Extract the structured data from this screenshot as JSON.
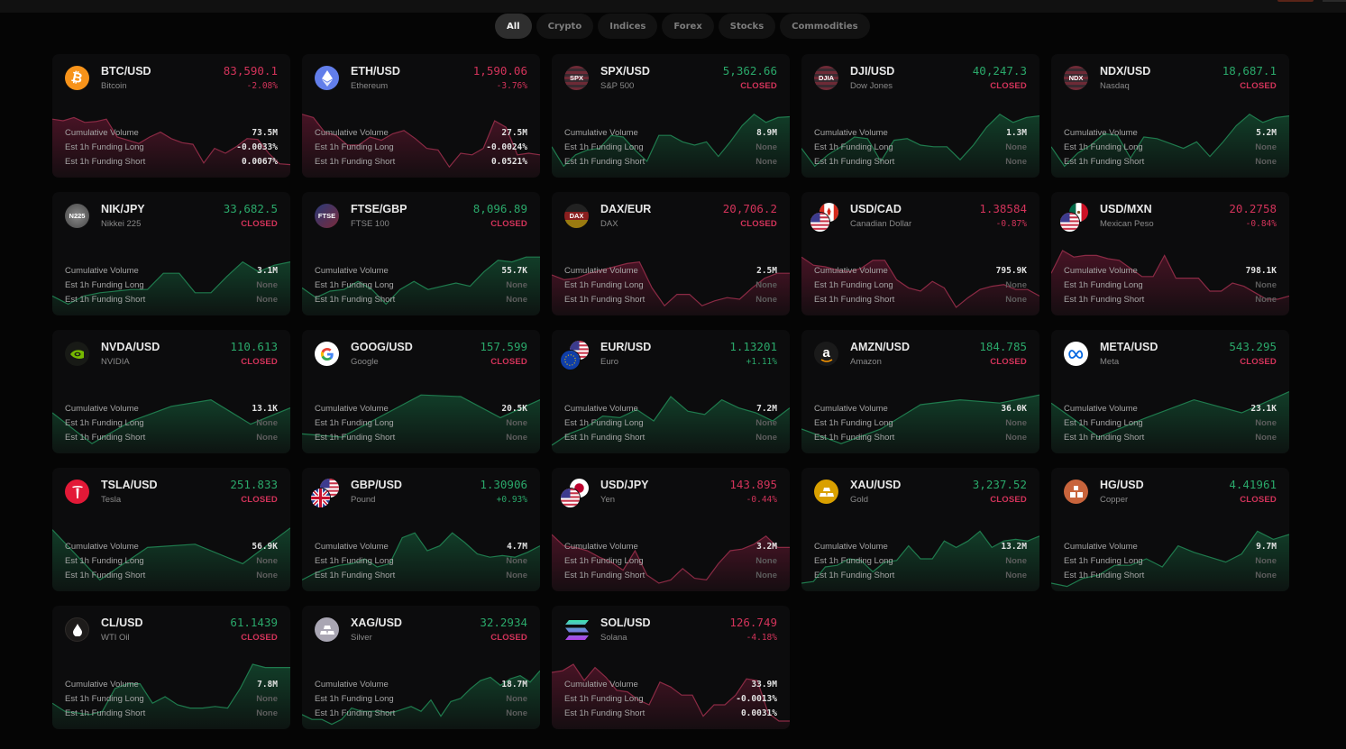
{
  "colors": {
    "up": "#2aa86a",
    "down": "#d2335a",
    "card_bg": "#0c0c0d",
    "page_bg": "#050505"
  },
  "filters": {
    "active": "All",
    "items": [
      {
        "label": "All"
      },
      {
        "label": "Crypto"
      },
      {
        "label": "Indices"
      },
      {
        "label": "Forex"
      },
      {
        "label": "Stocks"
      },
      {
        "label": "Commodities"
      }
    ]
  },
  "labels": {
    "cumulative_volume": "Cumulative Volume",
    "funding_long": "Est 1h Funding Long",
    "funding_short": "Est 1h Funding Short"
  },
  "markets": [
    {
      "symbol": "BTC/USD",
      "name": "Bitcoin",
      "price": "83,590.1",
      "change": "-2.08%",
      "price_dir": "down",
      "change_dir": "down",
      "change_closed": false,
      "volume": "73.5M",
      "funding_long": "-0.0033%",
      "funding_short": "0.0067%",
      "icon": "bitcoin-icon",
      "trend": "down",
      "spark": [
        72,
        70,
        74,
        68,
        69,
        72,
        50,
        46,
        42,
        50,
        56,
        48,
        43,
        41,
        18,
        36,
        30,
        38,
        48,
        47,
        30,
        17,
        16
      ]
    },
    {
      "symbol": "ETH/USD",
      "name": "Ethereum",
      "price": "1,590.06",
      "change": "-3.76%",
      "price_dir": "down",
      "change_dir": "down",
      "change_closed": false,
      "volume": "27.5M",
      "funding_long": "-0.0024%",
      "funding_short": "0.0521%",
      "icon": "ethereum-icon",
      "trend": "down",
      "spark": [
        78,
        74,
        56,
        52,
        40,
        40,
        50,
        46,
        54,
        58,
        48,
        36,
        34,
        13,
        30,
        28,
        36,
        70,
        62,
        28,
        30,
        28
      ]
    },
    {
      "symbol": "SPX/USD",
      "name": "S&P 500",
      "price": "5,362.66",
      "change": "CLOSED",
      "price_dir": "up",
      "change_dir": "down",
      "change_closed": true,
      "volume": "8.9M",
      "funding_long": "None",
      "funding_short": "None",
      "icon": "spx-flag-icon",
      "trend": "up",
      "spark": [
        38,
        14,
        28,
        34,
        36,
        52,
        50,
        34,
        20,
        52,
        52,
        44,
        40,
        44,
        26,
        44,
        64,
        78,
        68,
        74,
        75
      ]
    },
    {
      "symbol": "DJI/USD",
      "name": "Dow Jones",
      "price": "40,247.3",
      "change": "CLOSED",
      "price_dir": "up",
      "change_dir": "down",
      "change_closed": true,
      "volume": "1.3M",
      "funding_long": "None",
      "funding_short": "None",
      "icon": "djia-flag-icon",
      "trend": "up",
      "spark": [
        36,
        14,
        28,
        38,
        50,
        48,
        20,
        46,
        48,
        40,
        38,
        38,
        22,
        40,
        62,
        78,
        68,
        74,
        76
      ]
    },
    {
      "symbol": "NDX/USD",
      "name": "Nasdaq",
      "price": "18,687.1",
      "change": "CLOSED",
      "price_dir": "up",
      "change_dir": "down",
      "change_closed": true,
      "volume": "5.2M",
      "funding_long": "None",
      "funding_short": "None",
      "icon": "ndx-flag-icon",
      "trend": "up",
      "spark": [
        38,
        14,
        30,
        40,
        54,
        52,
        24,
        50,
        48,
        42,
        36,
        44,
        26,
        44,
        64,
        78,
        68,
        74,
        76
      ]
    },
    {
      "symbol": "NIK/JPY",
      "name": "Nikkei 225",
      "price": "33,682.5",
      "change": "CLOSED",
      "price_dir": "up",
      "change_dir": "down",
      "change_closed": true,
      "volume": "3.1M",
      "funding_long": "None",
      "funding_short": "None",
      "icon": "nikkei-flag-icon",
      "trend": "up",
      "spark": [
        24,
        14,
        24,
        28,
        30,
        32,
        32,
        52,
        52,
        28,
        28,
        48,
        66,
        54,
        62,
        66
      ]
    },
    {
      "symbol": "FTSE/GBP",
      "name": "FTSE 100",
      "price": "8,096.89",
      "change": "CLOSED",
      "price_dir": "up",
      "change_dir": "down",
      "change_closed": true,
      "volume": "55.7K",
      "funding_long": "None",
      "funding_short": "None",
      "icon": "ftse-flag-icon",
      "trend": "up",
      "spark": [
        34,
        22,
        30,
        32,
        42,
        32,
        14,
        32,
        42,
        32,
        36,
        40,
        36,
        54,
        68,
        66,
        72,
        72
      ]
    },
    {
      "symbol": "DAX/EUR",
      "name": "DAX",
      "price": "20,706.2",
      "change": "CLOSED",
      "price_dir": "down",
      "change_dir": "down",
      "change_closed": true,
      "volume": "2.5M",
      "funding_long": "None",
      "funding_short": "None",
      "icon": "dax-flag-icon",
      "trend": "down",
      "spark": [
        50,
        44,
        46,
        52,
        56,
        60,
        64,
        66,
        34,
        12,
        26,
        26,
        12,
        18,
        22,
        20,
        34,
        46,
        52,
        52
      ]
    },
    {
      "symbol": "USD/CAD",
      "name": "Canadian Dollar",
      "price": "1.38584",
      "change": "-0.87%",
      "price_dir": "down",
      "change_dir": "down",
      "change_closed": false,
      "volume": "795.9K",
      "funding_long": "None",
      "funding_short": "None",
      "icon": "usd-cad-flags-icon",
      "trend": "down",
      "spark": [
        72,
        62,
        60,
        56,
        54,
        58,
        68,
        68,
        44,
        34,
        30,
        42,
        34,
        10,
        22,
        32,
        36,
        38,
        32,
        32,
        24
      ]
    },
    {
      "symbol": "USD/MXN",
      "name": "Mexican Peso",
      "price": "20.2758",
      "change": "-0.84%",
      "price_dir": "down",
      "change_dir": "down",
      "change_closed": false,
      "volume": "798.1K",
      "funding_long": "None",
      "funding_short": "None",
      "icon": "usd-mxn-flags-icon",
      "trend": "down",
      "spark": [
        52,
        80,
        72,
        74,
        74,
        70,
        68,
        58,
        48,
        48,
        74,
        46,
        46,
        46,
        30,
        30,
        40,
        36,
        28,
        20,
        20,
        24
      ]
    },
    {
      "symbol": "NVDA/USD",
      "name": "NVIDIA",
      "price": "110.613",
      "change": "CLOSED",
      "price_dir": "up",
      "change_dir": "down",
      "change_closed": true,
      "volume": "13.1K",
      "funding_long": "None",
      "funding_short": "None",
      "icon": "nvidia-icon",
      "trend": "up",
      "spark": [
        50,
        12,
        40,
        58,
        66,
        36,
        56
      ]
    },
    {
      "symbol": "GOOG/USD",
      "name": "Google",
      "price": "157.599",
      "change": "CLOSED",
      "price_dir": "up",
      "change_dir": "down",
      "change_closed": true,
      "volume": "20.5K",
      "funding_long": "None",
      "funding_short": "None",
      "icon": "google-icon",
      "trend": "up",
      "spark": [
        24,
        20,
        46,
        72,
        70,
        44,
        66
      ]
    },
    {
      "symbol": "EUR/USD",
      "name": "Euro",
      "price": "1.13201",
      "change": "+1.11%",
      "price_dir": "up",
      "change_dir": "up",
      "change_closed": false,
      "volume": "7.2M",
      "funding_long": "None",
      "funding_short": "None",
      "icon": "eur-usd-flags-icon",
      "trend": "up",
      "spark": [
        10,
        24,
        32,
        46,
        44,
        54,
        40,
        70,
        52,
        48,
        66,
        56,
        50,
        40,
        56
      ]
    },
    {
      "symbol": "AMZN/USD",
      "name": "Amazon",
      "price": "184.785",
      "change": "CLOSED",
      "price_dir": "up",
      "change_dir": "down",
      "change_closed": true,
      "volume": "36.0K",
      "funding_long": "None",
      "funding_short": "None",
      "icon": "amazon-icon",
      "trend": "up",
      "spark": [
        30,
        12,
        30,
        60,
        66,
        62,
        72
      ]
    },
    {
      "symbol": "META/USD",
      "name": "Meta",
      "price": "543.295",
      "change": "CLOSED",
      "price_dir": "up",
      "change_dir": "down",
      "change_closed": true,
      "volume": "23.1K",
      "funding_long": "None",
      "funding_short": "None",
      "icon": "meta-icon",
      "trend": "up",
      "spark": [
        62,
        20,
        44,
        66,
        50,
        76
      ]
    },
    {
      "symbol": "TSLA/USD",
      "name": "Tesla",
      "price": "251.833",
      "change": "CLOSED",
      "price_dir": "up",
      "change_dir": "down",
      "change_closed": true,
      "volume": "56.9K",
      "funding_long": "None",
      "funding_short": "None",
      "icon": "tesla-icon",
      "trend": "up",
      "spark": [
        76,
        14,
        54,
        58,
        34,
        78
      ]
    },
    {
      "symbol": "GBP/USD",
      "name": "Pound",
      "price": "1.30906",
      "change": "+0.93%",
      "price_dir": "up",
      "change_dir": "up",
      "change_closed": false,
      "volume": "4.7M",
      "funding_long": "None",
      "funding_short": "None",
      "icon": "gbp-usd-flags-icon",
      "trend": "up",
      "spark": [
        14,
        22,
        28,
        32,
        34,
        40,
        30,
        34,
        66,
        72,
        50,
        56,
        72,
        60,
        46,
        42,
        44,
        42,
        48,
        56
      ]
    },
    {
      "symbol": "USD/JPY",
      "name": "Yen",
      "price": "143.895",
      "change": "-0.44%",
      "price_dir": "down",
      "change_dir": "down",
      "change_closed": false,
      "volume": "3.2M",
      "funding_long": "None",
      "funding_short": "None",
      "icon": "usd-jpy-flags-icon",
      "trend": "down",
      "spark": [
        70,
        56,
        54,
        50,
        42,
        36,
        26,
        50,
        20,
        10,
        14,
        28,
        16,
        14,
        34,
        50,
        52,
        58,
        68,
        54,
        54
      ]
    },
    {
      "symbol": "XAU/USD",
      "name": "Gold",
      "price": "3,237.52",
      "change": "CLOSED",
      "price_dir": "up",
      "change_dir": "down",
      "change_closed": true,
      "volume": "13.2M",
      "funding_long": "None",
      "funding_short": "None",
      "icon": "gold-bars-icon",
      "trend": "up",
      "spark": [
        10,
        12,
        30,
        32,
        40,
        38,
        24,
        36,
        38,
        56,
        40,
        40,
        62,
        54,
        62,
        74,
        54,
        62,
        64,
        62,
        68
      ]
    },
    {
      "symbol": "HG/USD",
      "name": "Copper",
      "price": "4.41961",
      "change": "CLOSED",
      "price_dir": "up",
      "change_dir": "down",
      "change_closed": true,
      "volume": "9.7M",
      "funding_long": "None",
      "funding_short": "None",
      "icon": "copper-bars-icon",
      "trend": "up",
      "spark": [
        10,
        6,
        16,
        20,
        32,
        32,
        40,
        30,
        56,
        48,
        42,
        36,
        46,
        74,
        64,
        70
      ]
    },
    {
      "symbol": "CL/USD",
      "name": "WTI Oil",
      "price": "61.1439",
      "change": "CLOSED",
      "price_dir": "up",
      "change_dir": "down",
      "change_closed": true,
      "volume": "7.8M",
      "funding_long": "None",
      "funding_short": "None",
      "icon": "oil-drop-icon",
      "trend": "up",
      "spark": [
        32,
        22,
        20,
        18,
        22,
        50,
        56,
        56,
        32,
        40,
        30,
        26,
        26,
        28,
        26,
        50,
        80,
        76,
        76,
        76
      ]
    },
    {
      "symbol": "XAG/USD",
      "name": "Silver",
      "price": "32.2934",
      "change": "CLOSED",
      "price_dir": "up",
      "change_dir": "down",
      "change_closed": true,
      "volume": "18.7M",
      "funding_long": "None",
      "funding_short": "None",
      "icon": "silver-bars-icon",
      "trend": "up",
      "spark": [
        18,
        12,
        12,
        6,
        12,
        26,
        22,
        22,
        22,
        20,
        24,
        28,
        22,
        36,
        16,
        34,
        38,
        50,
        60,
        64,
        54,
        62,
        66,
        58,
        72
      ]
    },
    {
      "symbol": "SOL/USD",
      "name": "Solana",
      "price": "126.749",
      "change": "-4.18%",
      "price_dir": "down",
      "change_dir": "down",
      "change_closed": false,
      "volume": "33.9M",
      "funding_long": "-0.0013%",
      "funding_short": "0.0031%",
      "icon": "solana-icon",
      "trend": "down",
      "spark": [
        70,
        72,
        80,
        60,
        76,
        64,
        48,
        46,
        36,
        30,
        58,
        52,
        42,
        42,
        16,
        30,
        30,
        42,
        62,
        60,
        20,
        10,
        10
      ]
    }
  ]
}
